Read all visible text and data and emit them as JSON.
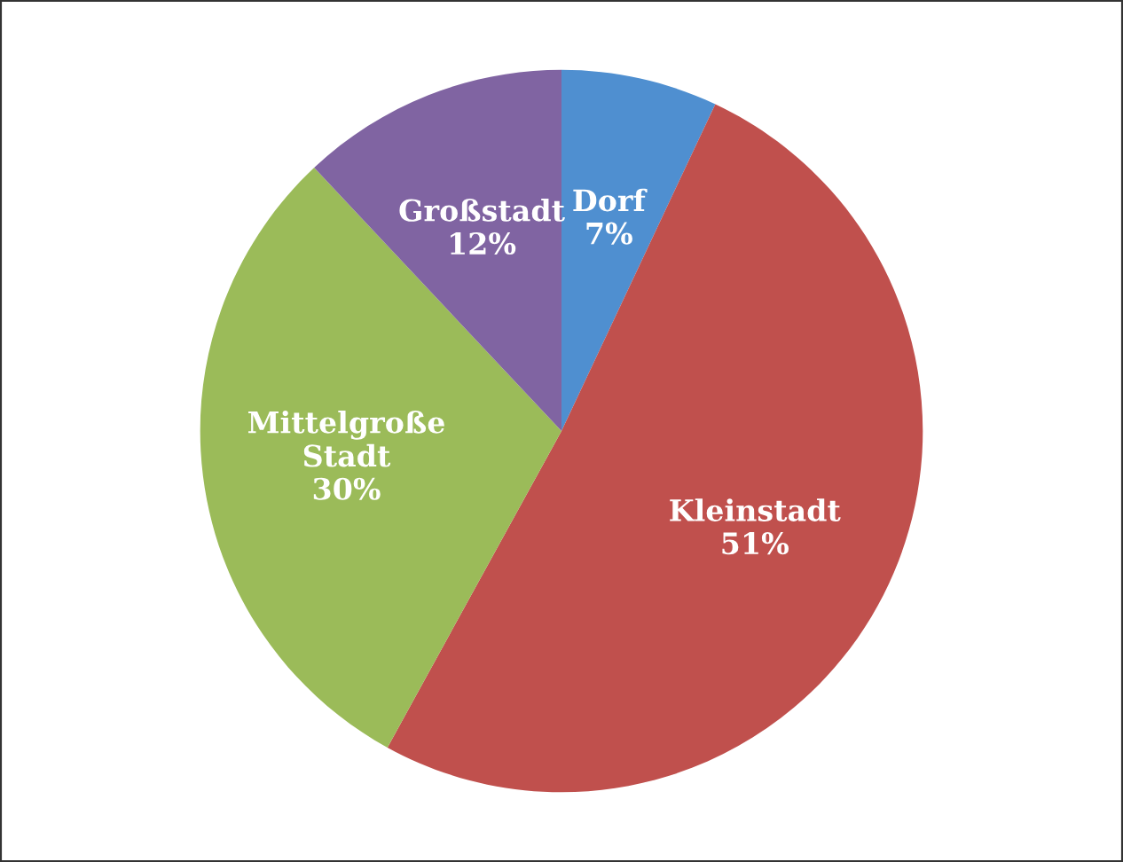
{
  "chart_data": {
    "type": "pie",
    "categories": [
      "Dorf",
      "Kleinstadt",
      "Mittelgroße Stadt",
      "Großstadt"
    ],
    "values": [
      7,
      51,
      30,
      12
    ],
    "value_labels": [
      "7%",
      "51%",
      "30%",
      "12%"
    ],
    "colors": [
      "#4f8fd0",
      "#c0504d",
      "#9bbb59",
      "#8064a2"
    ]
  }
}
